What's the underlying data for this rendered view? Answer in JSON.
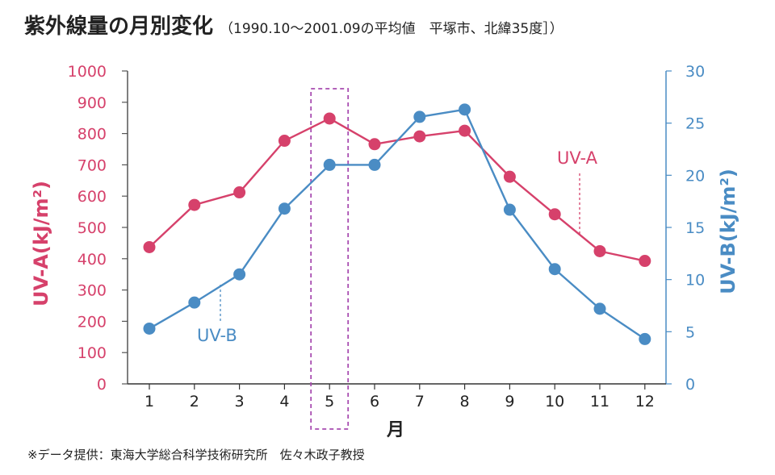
{
  "title": "紫外線量の月別変化",
  "subtitle": "（1990.10〜2001.09の平均値　平塚市、北緯35度］）",
  "source": "※データ提供：東海大学総合科学技術研究所　佐々木政子教授",
  "chart_data": {
    "type": "line",
    "title": "紫外線量の月別変化",
    "subtitle": "（1990.10〜2001.09の平均値　平塚市、北緯35度］）",
    "xlabel": "月",
    "x": [
      1,
      2,
      3,
      4,
      5,
      6,
      7,
      8,
      9,
      10,
      11,
      12
    ],
    "x_tick_labels": [
      "1",
      "2",
      "3",
      "4",
      "5",
      "6",
      "7",
      "8",
      "9",
      "10",
      "11",
      "12"
    ],
    "y_left": {
      "label": "UV-A(kJ/m²)",
      "lim": [
        0,
        1000
      ],
      "ticks": [
        0,
        100,
        200,
        300,
        400,
        500,
        600,
        700,
        800,
        900,
        1000
      ],
      "color": "#d6416b"
    },
    "y_right": {
      "label": "UV-B(kJ/m²)",
      "lim": [
        0,
        30
      ],
      "ticks": [
        0,
        5,
        10,
        15,
        20,
        25,
        30
      ],
      "color": "#4a8cc4"
    },
    "series": [
      {
        "name": "UV-A",
        "axis": "left",
        "color": "#d6416b",
        "values": [
          437,
          572,
          612,
          777,
          848,
          766,
          791,
          809,
          662,
          542,
          424,
          393
        ]
      },
      {
        "name": "UV-B",
        "axis": "right",
        "color": "#4a8cc4",
        "values": [
          5.3,
          7.8,
          10.5,
          16.8,
          21.0,
          21.0,
          25.6,
          26.3,
          16.7,
          11.0,
          7.2,
          4.3
        ]
      }
    ],
    "highlight": {
      "month": 5,
      "color": "#a84cb0",
      "style": "dashed"
    },
    "grid": false
  }
}
